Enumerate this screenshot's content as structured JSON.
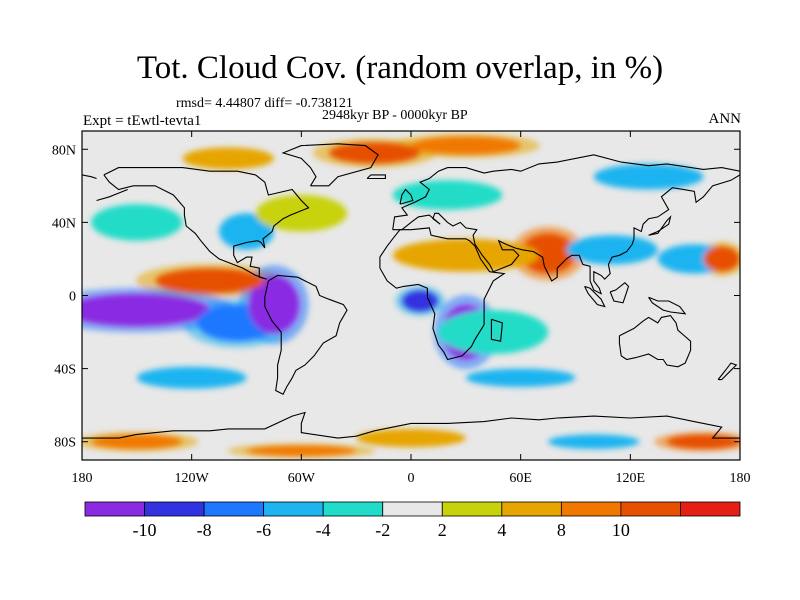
{
  "title": "Tot. Cloud Cov. (random overlap, in %)",
  "stats": "rmsd= 4.44807 diff= -0.738121",
  "period": "2948kyr BP - 0000kyr BP",
  "experiment": "Expt = tEwtl-tevta1",
  "season": "ANN",
  "map": {
    "projection": "cylindrical-equidistant",
    "lon_range": [
      -180,
      180
    ],
    "lat_range": [
      -90,
      90
    ],
    "lon_ticks": [
      {
        "value": -180,
        "label": "180"
      },
      {
        "value": -120,
        "label": "120W"
      },
      {
        "value": -60,
        "label": "60W"
      },
      {
        "value": 0,
        "label": "0"
      },
      {
        "value": 60,
        "label": "60E"
      },
      {
        "value": 120,
        "label": "120E"
      },
      {
        "value": 180,
        "label": "180"
      }
    ],
    "lat_ticks": [
      {
        "value": 80,
        "label": "80N"
      },
      {
        "value": 40,
        "label": "40N"
      },
      {
        "value": 0,
        "label": "0"
      },
      {
        "value": -40,
        "label": "40S"
      },
      {
        "value": -80,
        "label": "80S"
      }
    ],
    "background_color": "#e8e8e8",
    "coastline_color": "#000000",
    "anomaly_regions": [
      {
        "lon": -150,
        "lat": -8,
        "rlon": 40,
        "rlat": 9,
        "level": -11
      },
      {
        "lon": -95,
        "lat": -15,
        "rlon": 22,
        "rlat": 10,
        "level": -8
      },
      {
        "lon": -75,
        "lat": -5,
        "rlon": 14,
        "rlat": 16,
        "level": -11
      },
      {
        "lon": -110,
        "lat": 8,
        "rlon": 30,
        "rlat": 7,
        "level": 10
      },
      {
        "lon": 30,
        "lat": -20,
        "rlon": 13,
        "rlat": 15,
        "level": -11
      },
      {
        "lon": 5,
        "lat": -3,
        "rlon": 10,
        "rlat": 6,
        "level": -9
      },
      {
        "lon": 45,
        "lat": -20,
        "rlon": 30,
        "rlat": 12,
        "level": -4
      },
      {
        "lon": 75,
        "lat": 23,
        "rlon": 15,
        "rlat": 11,
        "level": 11
      },
      {
        "lon": 30,
        "lat": 22,
        "rlon": 40,
        "rlat": 9,
        "level": 5
      },
      {
        "lon": 110,
        "lat": 25,
        "rlon": 25,
        "rlat": 8,
        "level": -6
      },
      {
        "lon": 155,
        "lat": 20,
        "rlon": 20,
        "rlat": 8,
        "level": -5
      },
      {
        "lon": 170,
        "lat": 20,
        "rlon": 10,
        "rlat": 7,
        "level": 10
      },
      {
        "lon": -90,
        "lat": 35,
        "rlon": 15,
        "rlat": 10,
        "level": -6
      },
      {
        "lon": -60,
        "lat": 45,
        "rlon": 25,
        "rlat": 10,
        "level": 3
      },
      {
        "lon": -150,
        "lat": 40,
        "rlon": 25,
        "rlat": 10,
        "level": -3
      },
      {
        "lon": -20,
        "lat": 78,
        "rlon": 25,
        "rlat": 6,
        "level": 10
      },
      {
        "lon": 30,
        "lat": 82,
        "rlon": 30,
        "rlat": 5,
        "level": 8
      },
      {
        "lon": -100,
        "lat": 75,
        "rlon": 25,
        "rlat": 6,
        "level": 6
      },
      {
        "lon": 130,
        "lat": 65,
        "rlon": 30,
        "rlat": 7,
        "level": -5
      },
      {
        "lon": 20,
        "lat": 55,
        "rlon": 30,
        "rlat": 8,
        "level": -4
      },
      {
        "lon": -120,
        "lat": -45,
        "rlon": 30,
        "rlat": 6,
        "level": -5
      },
      {
        "lon": 60,
        "lat": -45,
        "rlon": 30,
        "rlat": 5,
        "level": -5
      },
      {
        "lon": -150,
        "lat": -80,
        "rlon": 25,
        "rlat": 4,
        "level": 9
      },
      {
        "lon": 0,
        "lat": -78,
        "rlon": 30,
        "rlat": 5,
        "level": 7
      },
      {
        "lon": 100,
        "lat": -80,
        "rlon": 25,
        "rlat": 4,
        "level": -6
      },
      {
        "lon": -60,
        "lat": -85,
        "rlon": 30,
        "rlat": 3,
        "level": 8
      },
      {
        "lon": 160,
        "lat": -80,
        "rlon": 20,
        "rlat": 4,
        "level": 11
      }
    ]
  },
  "colorbar": {
    "colors": [
      "#8a2be2",
      "#3232e0",
      "#1e78ff",
      "#1eb4f0",
      "#20dcc8",
      "#e8e8e8",
      "#c8d20a",
      "#e6a500",
      "#f07800",
      "#e65000",
      "#e61e14"
    ],
    "labels": [
      "-10",
      "-8",
      "-6",
      "-4",
      "-2",
      "2",
      "4",
      "8",
      "10"
    ],
    "thresholds": [
      -10,
      -8,
      -6,
      -4,
      -2,
      2,
      4,
      8,
      10
    ]
  }
}
